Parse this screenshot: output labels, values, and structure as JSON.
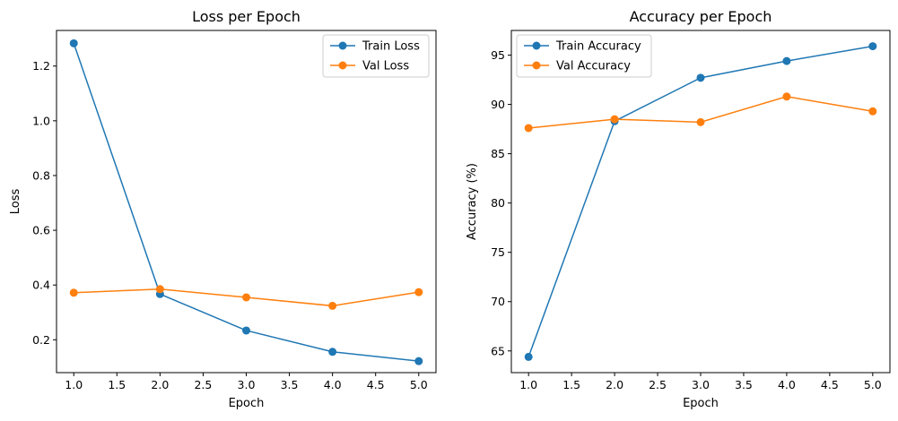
{
  "chart_data": [
    {
      "type": "line",
      "title": "Loss per Epoch",
      "xlabel": "Epoch",
      "ylabel": "Loss",
      "x": [
        1.0,
        2.0,
        3.0,
        4.0,
        5.0
      ],
      "xlim": [
        0.8,
        5.2
      ],
      "ylim": [
        0.08,
        1.33
      ],
      "xticks": [
        1.0,
        1.5,
        2.0,
        2.5,
        3.0,
        3.5,
        4.0,
        4.5,
        5.0
      ],
      "xtick_labels": [
        "1.0",
        "1.5",
        "2.0",
        "2.5",
        "3.0",
        "3.5",
        "4.0",
        "4.5",
        "5.0"
      ],
      "yticks": [
        0.2,
        0.4,
        0.6,
        0.8,
        1.0,
        1.2
      ],
      "ytick_labels": [
        "0.2",
        "0.4",
        "0.6",
        "0.8",
        "1.0",
        "1.2"
      ],
      "grid": false,
      "legend_position": "top-right",
      "series": [
        {
          "name": "Train Loss",
          "color": "#1f77b4",
          "marker": "circle",
          "values": [
            1.283,
            0.367,
            0.234,
            0.156,
            0.122
          ]
        },
        {
          "name": "Val Loss",
          "color": "#ff7f0e",
          "marker": "circle",
          "values": [
            0.372,
            0.385,
            0.355,
            0.324,
            0.374
          ]
        }
      ]
    },
    {
      "type": "line",
      "title": "Accuracy per Epoch",
      "xlabel": "Epoch",
      "ylabel": "Accuracy (%)",
      "x": [
        1.0,
        2.0,
        3.0,
        4.0,
        5.0
      ],
      "xlim": [
        0.8,
        5.2
      ],
      "ylim": [
        62.8,
        97.5
      ],
      "xticks": [
        1.0,
        1.5,
        2.0,
        2.5,
        3.0,
        3.5,
        4.0,
        4.5,
        5.0
      ],
      "xtick_labels": [
        "1.0",
        "1.5",
        "2.0",
        "2.5",
        "3.0",
        "3.5",
        "4.0",
        "4.5",
        "5.0"
      ],
      "yticks": [
        65,
        70,
        75,
        80,
        85,
        90,
        95
      ],
      "ytick_labels": [
        "65",
        "70",
        "75",
        "80",
        "85",
        "90",
        "95"
      ],
      "grid": false,
      "legend_position": "top-left",
      "series": [
        {
          "name": "Train Accuracy",
          "color": "#1f77b4",
          "marker": "circle",
          "values": [
            64.4,
            88.3,
            92.7,
            94.4,
            95.9
          ]
        },
        {
          "name": "Val Accuracy",
          "color": "#ff7f0e",
          "marker": "circle",
          "values": [
            87.6,
            88.5,
            88.2,
            90.8,
            89.3
          ]
        }
      ]
    }
  ]
}
